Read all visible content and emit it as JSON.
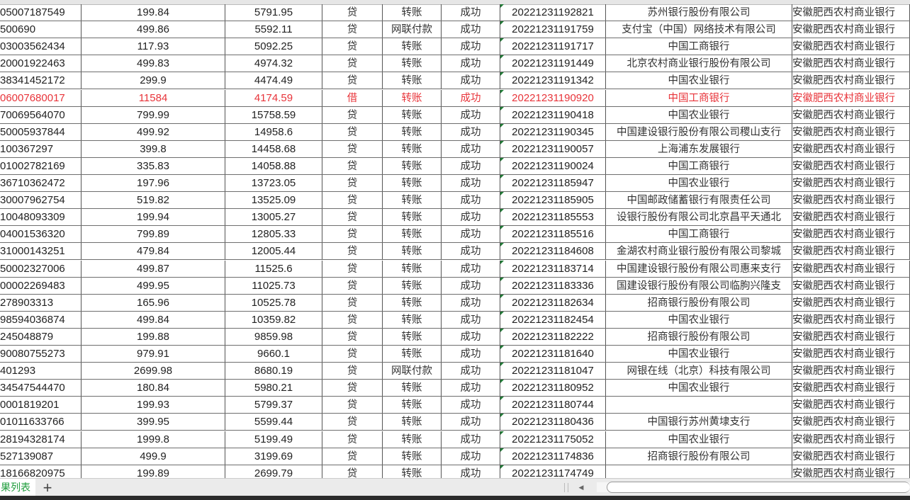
{
  "sheet": {
    "tab_label": "果列表",
    "add_sheet_icon": "plus-icon",
    "highlight_color": "#e8343a",
    "accent_color": "#1f9c3c"
  },
  "rows": [
    {
      "account": "05007187549",
      "amount": "199.84",
      "balance": "5791.95",
      "dc": "贷",
      "type": "转账",
      "status": "成功",
      "time": "20221231192821",
      "bank": "苏州银行股份有限公司",
      "own_bank": "安徽肥西农村商业银行"
    },
    {
      "account": "500690",
      "amount": "499.86",
      "balance": "5592.11",
      "dc": "贷",
      "type": "网联付款",
      "status": "成功",
      "time": "20221231191759",
      "bank": "支付宝（中国）网络技术有限公司",
      "own_bank": "安徽肥西农村商业银行"
    },
    {
      "account": "03003562434",
      "amount": "117.93",
      "balance": "5092.25",
      "dc": "贷",
      "type": "转账",
      "status": "成功",
      "time": "20221231191717",
      "bank": "中国工商银行",
      "own_bank": "安徽肥西农村商业银行"
    },
    {
      "account": "20001922463",
      "amount": "499.83",
      "balance": "4974.32",
      "dc": "贷",
      "type": "转账",
      "status": "成功",
      "time": "20221231191449",
      "bank": "北京农村商业银行股份有限公司",
      "own_bank": "安徽肥西农村商业银行"
    },
    {
      "account": "38341452172",
      "amount": "299.9",
      "balance": "4474.49",
      "dc": "贷",
      "type": "转账",
      "status": "成功",
      "time": "20221231191342",
      "bank": "中国农业银行",
      "own_bank": "安徽肥西农村商业银行"
    },
    {
      "account": "06007680017",
      "amount": "11584",
      "balance": "4174.59",
      "dc": "借",
      "type": "转账",
      "status": "成功",
      "time": "20221231190920",
      "bank": "中国工商银行",
      "own_bank": "安徽肥西农村商业银行",
      "highlight": true
    },
    {
      "account": "70069564070",
      "amount": "799.99",
      "balance": "15758.59",
      "dc": "贷",
      "type": "转账",
      "status": "成功",
      "time": "20221231190418",
      "bank": "中国农业银行",
      "own_bank": "安徽肥西农村商业银行"
    },
    {
      "account": "50005937844",
      "amount": "499.92",
      "balance": "14958.6",
      "dc": "贷",
      "type": "转账",
      "status": "成功",
      "time": "20221231190345",
      "bank": "中国建设银行股份有限公司稷山支行",
      "own_bank": "安徽肥西农村商业银行"
    },
    {
      "account": "100367297",
      "amount": "399.8",
      "balance": "14458.68",
      "dc": "贷",
      "type": "转账",
      "status": "成功",
      "time": "20221231190057",
      "bank": "上海浦东发展银行",
      "own_bank": "安徽肥西农村商业银行"
    },
    {
      "account": "01002782169",
      "amount": "335.83",
      "balance": "14058.88",
      "dc": "贷",
      "type": "转账",
      "status": "成功",
      "time": "20221231190024",
      "bank": "中国工商银行",
      "own_bank": "安徽肥西农村商业银行"
    },
    {
      "account": "36710362472",
      "amount": "197.96",
      "balance": "13723.05",
      "dc": "贷",
      "type": "转账",
      "status": "成功",
      "time": "20221231185947",
      "bank": "中国农业银行",
      "own_bank": "安徽肥西农村商业银行"
    },
    {
      "account": "30007962754",
      "amount": "519.82",
      "balance": "13525.09",
      "dc": "贷",
      "type": "转账",
      "status": "成功",
      "time": "20221231185905",
      "bank": "中国邮政储蓄银行有限责任公司",
      "own_bank": "安徽肥西农村商业银行"
    },
    {
      "account": "10048093309",
      "amount": "199.94",
      "balance": "13005.27",
      "dc": "贷",
      "type": "转账",
      "status": "成功",
      "time": "20221231185553",
      "bank": "设银行股份有限公司北京昌平天通北",
      "own_bank": "安徽肥西农村商业银行"
    },
    {
      "account": "04001536320",
      "amount": "799.89",
      "balance": "12805.33",
      "dc": "贷",
      "type": "转账",
      "status": "成功",
      "time": "20221231185516",
      "bank": "中国工商银行",
      "own_bank": "安徽肥西农村商业银行"
    },
    {
      "account": "31000143251",
      "amount": "479.84",
      "balance": "12005.44",
      "dc": "贷",
      "type": "转账",
      "status": "成功",
      "time": "20221231184608",
      "bank": "金湖农村商业银行股份有限公司黎城",
      "own_bank": "安徽肥西农村商业银行"
    },
    {
      "account": "50002327006",
      "amount": "499.87",
      "balance": "11525.6",
      "dc": "贷",
      "type": "转账",
      "status": "成功",
      "time": "20221231183714",
      "bank": "中国建设银行股份有限公司惠来支行",
      "own_bank": "安徽肥西农村商业银行"
    },
    {
      "account": "00002269483",
      "amount": "499.95",
      "balance": "11025.73",
      "dc": "贷",
      "type": "转账",
      "status": "成功",
      "time": "20221231183336",
      "bank": "国建设银行股份有限公司临朐兴隆支",
      "own_bank": "安徽肥西农村商业银行"
    },
    {
      "account": "278903313",
      "amount": "165.96",
      "balance": "10525.78",
      "dc": "贷",
      "type": "转账",
      "status": "成功",
      "time": "20221231182634",
      "bank": "招商银行股份有限公司",
      "own_bank": "安徽肥西农村商业银行"
    },
    {
      "account": "98594036874",
      "amount": "499.84",
      "balance": "10359.82",
      "dc": "贷",
      "type": "转账",
      "status": "成功",
      "time": "20221231182454",
      "bank": "中国农业银行",
      "own_bank": "安徽肥西农村商业银行"
    },
    {
      "account": "245048879",
      "amount": "199.88",
      "balance": "9859.98",
      "dc": "贷",
      "type": "转账",
      "status": "成功",
      "time": "20221231182222",
      "bank": "招商银行股份有限公司",
      "own_bank": "安徽肥西农村商业银行"
    },
    {
      "account": "90080755273",
      "amount": "979.91",
      "balance": "9660.1",
      "dc": "贷",
      "type": "转账",
      "status": "成功",
      "time": "20221231181640",
      "bank": "中国农业银行",
      "own_bank": "安徽肥西农村商业银行"
    },
    {
      "account": "401293",
      "amount": "2699.98",
      "balance": "8680.19",
      "dc": "贷",
      "type": "网联付款",
      "status": "成功",
      "time": "20221231181047",
      "bank": "网银在线（北京）科技有限公司",
      "own_bank": "安徽肥西农村商业银行"
    },
    {
      "account": "34547544470",
      "amount": "180.84",
      "balance": "5980.21",
      "dc": "贷",
      "type": "转账",
      "status": "成功",
      "time": "20221231180952",
      "bank": "中国农业银行",
      "own_bank": "安徽肥西农村商业银行"
    },
    {
      "account": "0001819201",
      "amount": "199.93",
      "balance": "5799.37",
      "dc": "贷",
      "type": "转账",
      "status": "成功",
      "time": "20221231180744",
      "bank": "",
      "own_bank": "安徽肥西农村商业银行"
    },
    {
      "account": "01011633766",
      "amount": "399.95",
      "balance": "5599.44",
      "dc": "贷",
      "type": "转账",
      "status": "成功",
      "time": "20221231180436",
      "bank": "中国银行苏州黄埭支行",
      "own_bank": "安徽肥西农村商业银行"
    },
    {
      "account": "28194328174",
      "amount": "1999.8",
      "balance": "5199.49",
      "dc": "贷",
      "type": "转账",
      "status": "成功",
      "time": "20221231175052",
      "bank": "中国农业银行",
      "own_bank": "安徽肥西农村商业银行"
    },
    {
      "account": "527139087",
      "amount": "499.9",
      "balance": "3199.69",
      "dc": "贷",
      "type": "转账",
      "status": "成功",
      "time": "20221231174836",
      "bank": "招商银行股份有限公司",
      "own_bank": "安徽肥西农村商业银行"
    },
    {
      "account": "18166820975",
      "amount": "199.89",
      "balance": "2699.79",
      "dc": "贷",
      "type": "转账",
      "status": "成功",
      "time": "20221231174749",
      "bank": "",
      "own_bank": "安徽肥西农村商业银行"
    }
  ]
}
